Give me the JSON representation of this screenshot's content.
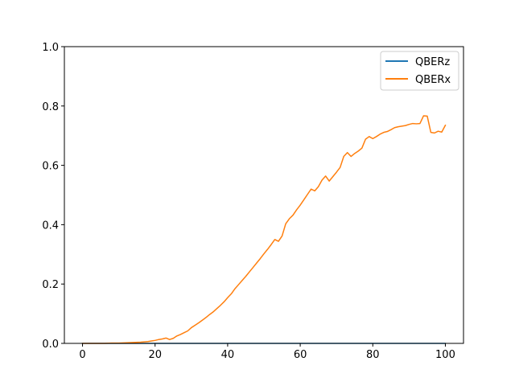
{
  "chart_data": {
    "type": "line",
    "title": "",
    "xlabel": "",
    "ylabel": "",
    "xlim": [
      -5,
      105
    ],
    "ylim": [
      0,
      1.0
    ],
    "grid": false,
    "legend_position": "top-right",
    "x_ticks": [
      0,
      20,
      40,
      60,
      80,
      100
    ],
    "x_tick_labels": [
      "0",
      "20",
      "40",
      "60",
      "80",
      "100"
    ],
    "y_ticks": [
      0.0,
      0.2,
      0.4,
      0.6,
      0.8,
      1.0
    ],
    "y_tick_labels": [
      "0.0",
      "0.2",
      "0.4",
      "0.6",
      "0.8",
      "1.0"
    ],
    "series": [
      {
        "name": "QBERz",
        "color": "#1f77b4",
        "x": [
          0,
          100
        ],
        "y": [
          0.0,
          0.0
        ]
      },
      {
        "name": "QBERx",
        "color": "#ff7f0e",
        "x": [
          0,
          2,
          4,
          6,
          8,
          10,
          12,
          14,
          16,
          18,
          19,
          20,
          21,
          22,
          23,
          24,
          25,
          26,
          27,
          28,
          29,
          30,
          31,
          32,
          33,
          34,
          35,
          36,
          37,
          38,
          39,
          40,
          41,
          42,
          43,
          44,
          45,
          46,
          47,
          48,
          49,
          50,
          51,
          52,
          53,
          54,
          55,
          56,
          57,
          58,
          59,
          60,
          61,
          62,
          63,
          64,
          65,
          66,
          67,
          68,
          69,
          70,
          71,
          72,
          73,
          74,
          75,
          76,
          77,
          78,
          79,
          80,
          81,
          82,
          83,
          84,
          85,
          86,
          87,
          88,
          89,
          90,
          91,
          92,
          93,
          94,
          95,
          96,
          97,
          98,
          99,
          100
        ],
        "y": [
          0.0,
          0.0,
          0.0,
          0.0,
          0.001,
          0.001,
          0.002,
          0.003,
          0.004,
          0.006,
          0.008,
          0.01,
          0.013,
          0.015,
          0.018,
          0.013,
          0.017,
          0.025,
          0.03,
          0.036,
          0.042,
          0.053,
          0.061,
          0.069,
          0.078,
          0.087,
          0.097,
          0.106,
          0.117,
          0.128,
          0.14,
          0.154,
          0.167,
          0.184,
          0.198,
          0.212,
          0.226,
          0.241,
          0.256,
          0.271,
          0.286,
          0.302,
          0.317,
          0.333,
          0.35,
          0.344,
          0.362,
          0.403,
          0.42,
          0.432,
          0.45,
          0.466,
          0.484,
          0.502,
          0.52,
          0.514,
          0.528,
          0.55,
          0.564,
          0.547,
          0.562,
          0.577,
          0.593,
          0.63,
          0.643,
          0.63,
          0.64,
          0.648,
          0.658,
          0.688,
          0.697,
          0.69,
          0.697,
          0.705,
          0.711,
          0.714,
          0.72,
          0.727,
          0.73,
          0.732,
          0.734,
          0.738,
          0.741,
          0.74,
          0.741,
          0.767,
          0.766,
          0.711,
          0.709,
          0.715,
          0.712,
          0.735
        ]
      }
    ]
  }
}
